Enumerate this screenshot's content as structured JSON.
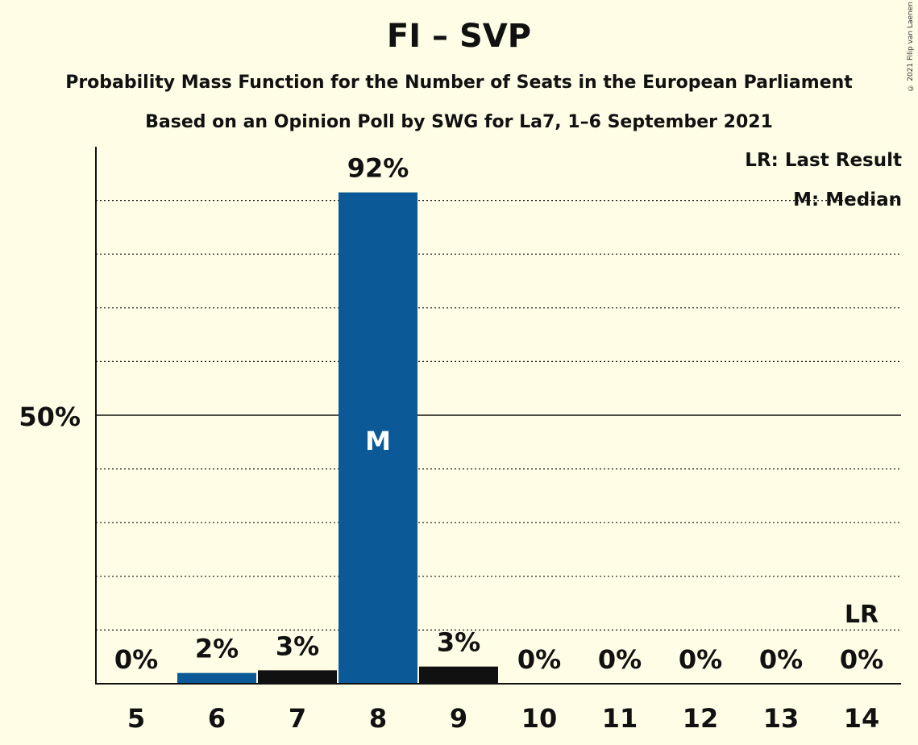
{
  "chart_data": {
    "type": "bar",
    "title": "FI – SVP",
    "subtitle": "Probability Mass Function for the Number of Seats in the European Parliament",
    "subtitle2": "Based on an Opinion Poll by SWG for La7, 1–6 September 2021",
    "categories": [
      "5",
      "6",
      "7",
      "8",
      "9",
      "10",
      "11",
      "12",
      "13",
      "14"
    ],
    "values": [
      0,
      2,
      2.5,
      91.5,
      3.2,
      0,
      0,
      0,
      0,
      0
    ],
    "value_labels": [
      "0%",
      "2%",
      "3%",
      "92%",
      "3%",
      "0%",
      "0%",
      "0%",
      "0%",
      "0%"
    ],
    "bar_colors": [
      "#0b5a97",
      "#0b5a97",
      "#111111",
      "#0b5a97",
      "#111111",
      "#0b5a97",
      "#0b5a97",
      "#0b5a97",
      "#0b5a97",
      "#0b5a97"
    ],
    "median_category": "8",
    "median_marker": "M",
    "last_result_category": "14",
    "last_result_marker": "LR",
    "ylim": [
      0,
      100
    ],
    "ytick_label": "50%",
    "ytick_value": 50,
    "grid_step": 10,
    "legend": {
      "last_result": "LR: Last Result",
      "median": "M: Median",
      "placement": "top-right"
    }
  },
  "copyright": "© 2021 Filip van Laenen",
  "colors": {
    "background": "#fffde6",
    "primary": "#0b5a97",
    "secondary": "#111111"
  }
}
